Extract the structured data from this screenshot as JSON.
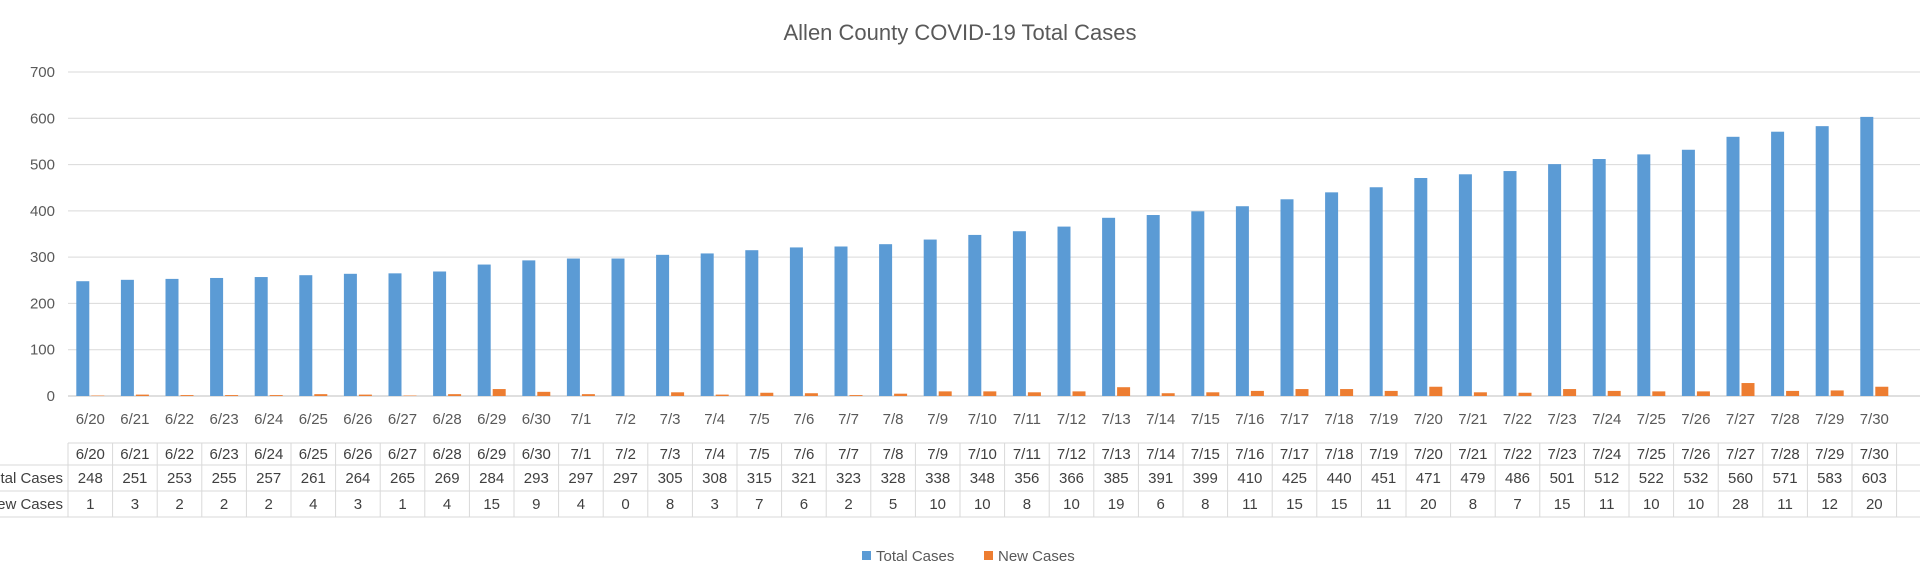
{
  "chart_data": {
    "type": "bar",
    "title": "Allen County COVID-19 Total Cases",
    "xlabel": "",
    "ylabel": "",
    "ylim": [
      0,
      700
    ],
    "yticks": [
      "0",
      "100",
      "200",
      "300",
      "400",
      "500",
      "600",
      "700"
    ],
    "grid": true,
    "legend_position": "bottom",
    "categories": [
      "6/20",
      "6/21",
      "6/22",
      "6/23",
      "6/24",
      "6/25",
      "6/26",
      "6/27",
      "6/28",
      "6/29",
      "6/30",
      "7/1",
      "7/2",
      "7/3",
      "7/4",
      "7/5",
      "7/6",
      "7/7",
      "7/8",
      "7/9",
      "7/10",
      "7/11",
      "7/12",
      "7/13",
      "7/14",
      "7/15",
      "7/16",
      "7/17",
      "7/18",
      "7/19",
      "7/20",
      "7/21",
      "7/22",
      "7/23",
      "7/24",
      "7/25",
      "7/26",
      "7/27",
      "7/28",
      "7/29",
      "7/30"
    ],
    "series": [
      {
        "name": "Total Cases",
        "row_label": "Total Cases",
        "color": "#5B9BD5",
        "values": [
          248,
          251,
          253,
          255,
          257,
          261,
          264,
          265,
          269,
          284,
          293,
          297,
          297,
          305,
          308,
          315,
          321,
          323,
          328,
          338,
          348,
          356,
          366,
          385,
          391,
          399,
          410,
          425,
          440,
          451,
          471,
          479,
          486,
          501,
          512,
          522,
          532,
          560,
          571,
          583,
          603
        ]
      },
      {
        "name": "New Cases",
        "row_label": "New Cases",
        "color": "#ED7D31",
        "values": [
          1,
          3,
          2,
          2,
          2,
          4,
          3,
          1,
          4,
          15,
          9,
          4,
          0,
          8,
          3,
          7,
          6,
          2,
          5,
          10,
          10,
          8,
          10,
          19,
          6,
          8,
          11,
          15,
          15,
          11,
          20,
          8,
          7,
          15,
          11,
          10,
          10,
          28,
          11,
          12,
          20
        ]
      }
    ]
  }
}
